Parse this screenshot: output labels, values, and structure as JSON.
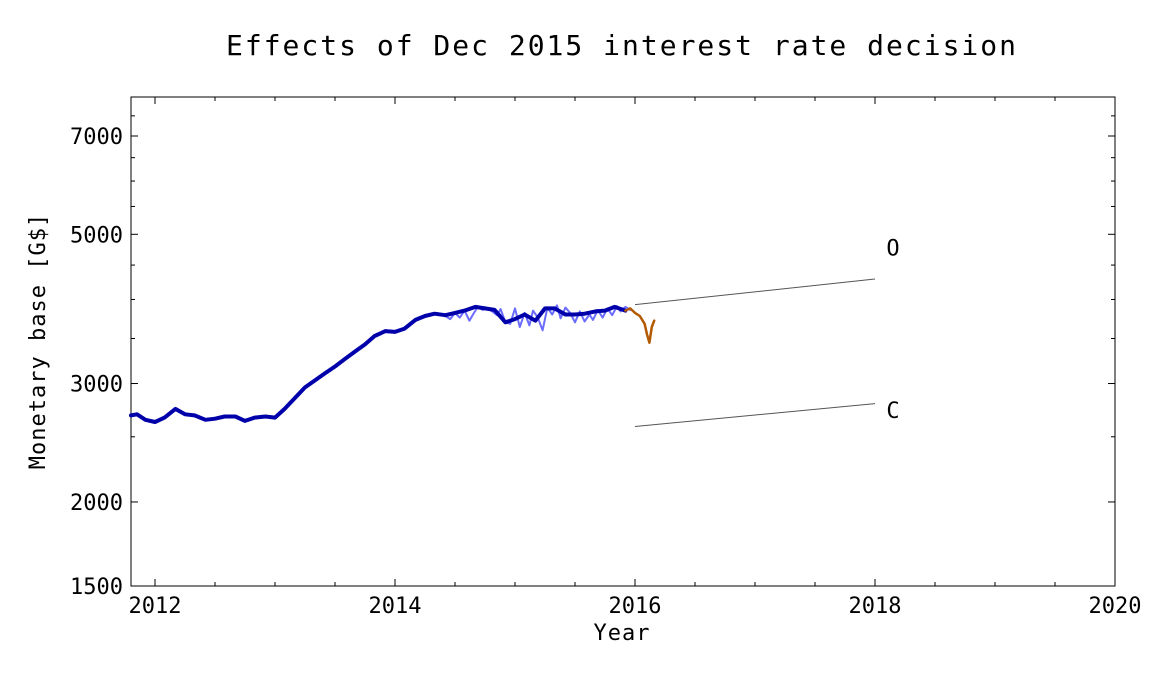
{
  "chart_data": {
    "type": "line",
    "title": "Effects of Dec 2015 interest rate decision",
    "xlabel": "Year",
    "ylabel": "Monetary base [G$]",
    "xlim": [
      2011.8,
      2020
    ],
    "ylim": [
      1500,
      8000
    ],
    "yscale": "log",
    "grid": false,
    "x_ticks": [
      2012,
      2014,
      2016,
      2018,
      2020
    ],
    "y_ticks": [
      1500,
      2000,
      3000,
      5000,
      7000
    ],
    "y_minor_ticks": [
      2500,
      3500,
      4000,
      4500,
      5500,
      6000,
      6500,
      7500
    ],
    "series": [
      {
        "role": "historical-monthly",
        "color": "#0000aa",
        "x": [
          2011.8,
          2011.85,
          2011.92,
          2012.0,
          2012.08,
          2012.17,
          2012.25,
          2012.33,
          2012.42,
          2012.5,
          2012.58,
          2012.67,
          2012.75,
          2012.83,
          2012.92,
          2013.0,
          2013.08,
          2013.17,
          2013.25,
          2013.33,
          2013.42,
          2013.5,
          2013.58,
          2013.67,
          2013.75,
          2013.83,
          2013.92,
          2014.0,
          2014.08,
          2014.17,
          2014.25,
          2014.33,
          2014.42,
          2014.5,
          2014.58,
          2014.67,
          2014.75,
          2014.83,
          2014.92,
          2015.0,
          2015.08,
          2015.17,
          2015.25,
          2015.33,
          2015.42,
          2015.5,
          2015.58,
          2015.67,
          2015.75,
          2015.83,
          2015.92
        ],
        "values": [
          2690,
          2700,
          2650,
          2630,
          2670,
          2750,
          2700,
          2690,
          2650,
          2660,
          2680,
          2680,
          2640,
          2670,
          2680,
          2670,
          2750,
          2860,
          2960,
          3030,
          3110,
          3180,
          3260,
          3350,
          3430,
          3530,
          3590,
          3580,
          3620,
          3730,
          3780,
          3810,
          3790,
          3820,
          3850,
          3900,
          3880,
          3860,
          3700,
          3740,
          3800,
          3720,
          3880,
          3880,
          3800,
          3800,
          3810,
          3840,
          3850,
          3900,
          3850
        ]
      },
      {
        "role": "historical-weekly",
        "color": "#6b6bff",
        "x": [
          2014.42,
          2014.46,
          2014.5,
          2014.54,
          2014.58,
          2014.62,
          2014.65,
          2014.69,
          2014.73,
          2014.77,
          2014.81,
          2014.85,
          2014.88,
          2014.92,
          2014.96,
          2015.0,
          2015.04,
          2015.08,
          2015.12,
          2015.15,
          2015.19,
          2015.23,
          2015.27,
          2015.31,
          2015.35,
          2015.38,
          2015.42,
          2015.46,
          2015.5,
          2015.54,
          2015.58,
          2015.62,
          2015.65,
          2015.69,
          2015.73,
          2015.77,
          2015.81,
          2015.85,
          2015.88,
          2015.92,
          2015.96
        ],
        "values": [
          3780,
          3740,
          3820,
          3760,
          3850,
          3720,
          3800,
          3900,
          3860,
          3880,
          3840,
          3790,
          3870,
          3700,
          3680,
          3880,
          3640,
          3820,
          3660,
          3850,
          3760,
          3600,
          3890,
          3800,
          3920,
          3750,
          3890,
          3820,
          3700,
          3840,
          3710,
          3800,
          3730,
          3860,
          3760,
          3880,
          3790,
          3910,
          3840,
          3900,
          3860
        ]
      },
      {
        "role": "recent",
        "color": "#b35900",
        "x": [
          2015.92,
          2015.96,
          2016.0,
          2016.04,
          2016.08,
          2016.1,
          2016.12,
          2016.14,
          2016.16
        ],
        "values": [
          3850,
          3880,
          3820,
          3780,
          3680,
          3550,
          3450,
          3640,
          3720
        ]
      }
    ],
    "annotations": [
      {
        "label": "O",
        "x": 2018.15,
        "y": 4780,
        "line": {
          "x1": 2016.0,
          "y1": 3930,
          "x2": 2018.0,
          "y2": 4290
        }
      },
      {
        "label": "C",
        "x": 2018.15,
        "y": 2740,
        "line": {
          "x1": 2016.0,
          "y1": 2590,
          "x2": 2018.0,
          "y2": 2800
        }
      }
    ]
  }
}
